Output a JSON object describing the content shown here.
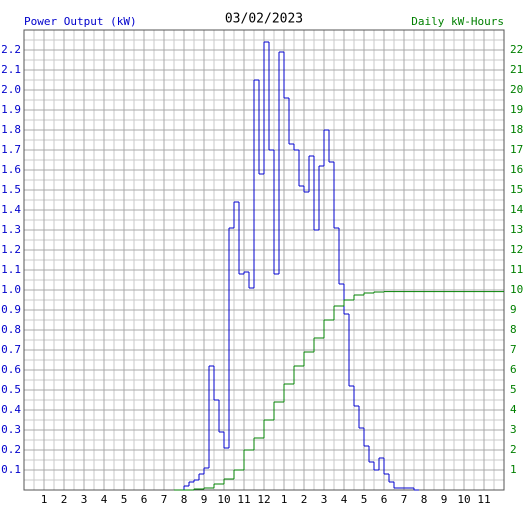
{
  "chart_data": {
    "type": "line",
    "step": true,
    "title": "03/02/2023",
    "ylabel": "Power Output (kW)",
    "y2label": "Daily kW-Hours",
    "grid": true,
    "xlim": [
      0,
      24
    ],
    "xticks": [
      1,
      2,
      3,
      4,
      5,
      6,
      7,
      8,
      9,
      10,
      11,
      12,
      {
        "value": 13,
        "label": "1"
      },
      {
        "value": 14,
        "label": "2"
      },
      {
        "value": 15,
        "label": "3"
      },
      {
        "value": 16,
        "label": "4"
      },
      {
        "value": 17,
        "label": "5"
      },
      {
        "value": 18,
        "label": "6"
      },
      {
        "value": 19,
        "label": "7"
      },
      {
        "value": 20,
        "label": "8"
      },
      {
        "value": 21,
        "label": "9"
      },
      {
        "value": 22,
        "label": "10"
      },
      {
        "value": 23,
        "label": "11"
      }
    ],
    "ylim": [
      0,
      2.3
    ],
    "yticks": [
      0.1,
      0.2,
      0.3,
      0.4,
      0.5,
      0.6,
      0.7,
      0.8,
      0.9,
      {
        "value": 1,
        "label": "1.0"
      },
      1.1,
      1.2,
      1.3,
      1.4,
      1.5,
      1.6,
      1.7,
      1.8,
      1.9,
      {
        "value": 2,
        "label": "2.0"
      },
      2.1,
      2.2
    ],
    "y2lim": [
      0,
      23
    ],
    "y2ticks": [
      1,
      2,
      3,
      4,
      5,
      6,
      7,
      8,
      9,
      10,
      11,
      12,
      13,
      14,
      15,
      16,
      17,
      18,
      19,
      20,
      21,
      22
    ],
    "series": [
      {
        "color": "#0000cc",
        "axis": "y",
        "x": [
          7.75,
          8,
          8.25,
          8.5,
          8.75,
          9,
          9.25,
          9.5,
          9.75,
          10,
          10.25,
          10.5,
          10.75,
          11,
          11.25,
          11.5,
          11.75,
          12,
          12.25,
          12.5,
          12.75,
          13,
          13.25,
          13.5,
          13.75,
          14,
          14.25,
          14.5,
          14.75,
          15,
          15.25,
          15.5,
          15.75,
          16,
          16.25,
          16.5,
          16.75,
          17,
          17.25,
          17.5,
          17.75,
          18,
          18.25,
          18.5,
          18.75,
          19,
          19.25,
          19.5
        ],
        "values": [
          0,
          0.02,
          0.04,
          0.05,
          0.08,
          0.11,
          0.62,
          0.45,
          0.29,
          0.21,
          1.31,
          1.44,
          1.08,
          1.09,
          1.01,
          2.05,
          1.58,
          2.24,
          1.7,
          1.08,
          2.19,
          1.96,
          1.73,
          1.7,
          1.52,
          1.49,
          1.67,
          1.3,
          1.62,
          1.8,
          1.64,
          1.31,
          1.03,
          0.88,
          0.52,
          0.42,
          0.31,
          0.22,
          0.14,
          0.1,
          0.16,
          0.08,
          0.04,
          0.01,
          0.01,
          0.01,
          0.01,
          0
        ]
      },
      {
        "color": "#008000",
        "axis": "y2",
        "x": [
          7.5,
          8,
          8.5,
          9,
          9.5,
          10,
          10.5,
          11,
          11.5,
          12,
          12.5,
          13,
          13.5,
          14,
          14.5,
          15,
          15.5,
          16,
          16.5,
          17,
          17.5,
          18,
          18.5,
          19,
          19.5,
          20,
          20.5,
          21,
          21.5,
          22,
          22.5,
          23,
          23.5
        ],
        "values": [
          0,
          0,
          0.05,
          0.1,
          0.3,
          0.55,
          1.0,
          2.0,
          2.6,
          3.5,
          4.4,
          5.3,
          6.2,
          6.9,
          7.6,
          8.5,
          9.2,
          9.5,
          9.75,
          9.85,
          9.9,
          9.92,
          9.92,
          9.92,
          9.92,
          9.92,
          9.92,
          9.92,
          9.92,
          9.92,
          9.92,
          9.92,
          9.92
        ]
      }
    ]
  }
}
